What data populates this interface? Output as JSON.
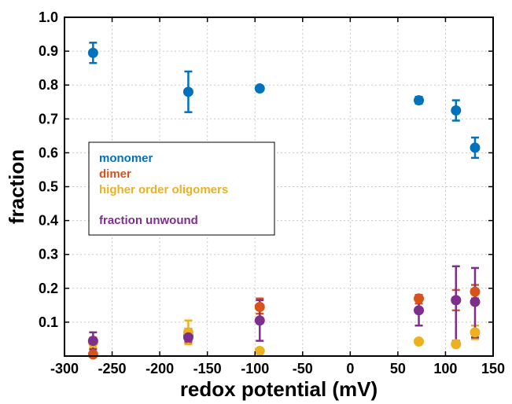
{
  "chart_data": {
    "type": "scatter",
    "title": "",
    "xlabel": "redox potential (mV)",
    "ylabel": "fraction",
    "xlim": [
      -300,
      150
    ],
    "ylim": [
      0,
      1.0
    ],
    "x_ticks": [
      "-300",
      "-250",
      "-200",
      "-150",
      "-100",
      "-50",
      "0",
      "50",
      "100",
      "150"
    ],
    "y_ticks": [
      "0.1",
      "0.2",
      "0.3",
      "0.4",
      "0.5",
      "0.6",
      "0.7",
      "0.8",
      "0.9",
      "1.0"
    ],
    "grid": true,
    "legend_placement": "center-left",
    "series": [
      {
        "name": "monomer",
        "color": "#0072BD",
        "points": [
          {
            "x": -270,
            "y": 0.895,
            "err_low": 0.865,
            "err_high": 0.925
          },
          {
            "x": -170,
            "y": 0.78,
            "err_low": 0.72,
            "err_high": 0.84
          },
          {
            "x": -95,
            "y": 0.79,
            "err_low": 0.785,
            "err_high": 0.795
          },
          {
            "x": 72,
            "y": 0.755,
            "err_low": 0.745,
            "err_high": 0.765
          },
          {
            "x": 111,
            "y": 0.725,
            "err_low": 0.695,
            "err_high": 0.755
          },
          {
            "x": 131,
            "y": 0.615,
            "err_low": 0.585,
            "err_high": 0.645
          }
        ]
      },
      {
        "name": "dimer",
        "color": "#D95319",
        "points": [
          {
            "x": -270,
            "y": 0.005,
            "err_low": 0.0,
            "err_high": 0.01
          },
          {
            "x": -170,
            "y": 0.06,
            "err_low": 0.04,
            "err_high": 0.08
          },
          {
            "x": -95,
            "y": 0.145,
            "err_low": 0.125,
            "err_high": 0.17
          },
          {
            "x": 72,
            "y": 0.17,
            "err_low": 0.155,
            "err_high": 0.18
          },
          {
            "x": 111,
            "y": 0.165,
            "err_low": 0.135,
            "err_high": 0.195
          },
          {
            "x": 131,
            "y": 0.19,
            "err_low": 0.17,
            "err_high": 0.21
          }
        ]
      },
      {
        "name": "higher order oligomers",
        "color": "#EDB120",
        "points": [
          {
            "x": -270,
            "y": 0.04,
            "err_low": 0.025,
            "err_high": 0.055
          },
          {
            "x": -170,
            "y": 0.07,
            "err_low": 0.035,
            "err_high": 0.105
          },
          {
            "x": -95,
            "y": 0.015,
            "err_low": 0.01,
            "err_high": 0.02
          },
          {
            "x": 72,
            "y": 0.043,
            "err_low": 0.04,
            "err_high": 0.046
          },
          {
            "x": 111,
            "y": 0.035,
            "err_low": 0.03,
            "err_high": 0.04
          },
          {
            "x": 131,
            "y": 0.07,
            "err_low": 0.05,
            "err_high": 0.09
          }
        ]
      },
      {
        "name": "fraction unwound",
        "color": "#7E2F8E",
        "points": [
          {
            "x": -270,
            "y": 0.045,
            "err_low": 0.02,
            "err_high": 0.07
          },
          {
            "x": -170,
            "y": 0.055,
            "err_low": 0.045,
            "err_high": 0.065
          },
          {
            "x": -95,
            "y": 0.105,
            "err_low": 0.045,
            "err_high": 0.165
          },
          {
            "x": 72,
            "y": 0.135,
            "err_low": 0.09,
            "err_high": 0.18
          },
          {
            "x": 111,
            "y": 0.165,
            "err_low": 0.045,
            "err_high": 0.265
          },
          {
            "x": 131,
            "y": 0.16,
            "err_low": 0.055,
            "err_high": 0.26
          }
        ]
      }
    ]
  }
}
